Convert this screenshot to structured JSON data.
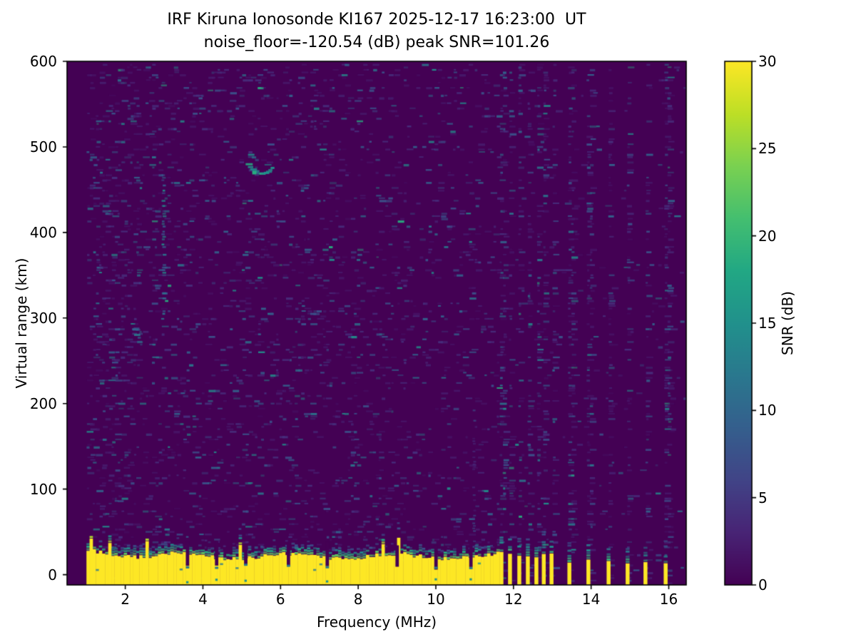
{
  "chart_data": {
    "type": "heatmap",
    "title": "IRF Kiruna Ionosonde KI167 2025-12-17 16:23:00  UT",
    "subtitle": "noise_floor=-120.54 (dB) peak SNR=101.26",
    "xlabel": "Frequency (MHz)",
    "ylabel": "Virtual range (km)",
    "colorbar_label": "SNR (dB)",
    "xlim": [
      0.5,
      16.45
    ],
    "ylim": [
      -12,
      600
    ],
    "xticks": [
      2,
      4,
      6,
      8,
      10,
      12,
      14,
      16
    ],
    "yticks": [
      0,
      100,
      200,
      300,
      400,
      500,
      600
    ],
    "colorbar_ticks": [
      0,
      5,
      10,
      15,
      20,
      25,
      30
    ],
    "clim": [
      0,
      30
    ],
    "colormap": "viridis",
    "colormap_stops": [
      [
        0.0,
        "#440154"
      ],
      [
        0.1,
        "#482475"
      ],
      [
        0.2,
        "#414487"
      ],
      [
        0.3,
        "#355f8d"
      ],
      [
        0.4,
        "#2a788e"
      ],
      [
        0.5,
        "#21918c"
      ],
      [
        0.6,
        "#22a884"
      ],
      [
        0.7,
        "#44bf70"
      ],
      [
        0.8,
        "#7ad151"
      ],
      [
        0.9,
        "#bddf26"
      ],
      [
        1.0,
        "#fde725"
      ]
    ],
    "sweep": {
      "freq_start_mhz": 1.0,
      "freq_end_mhz": 16.4
    },
    "ground_band": {
      "freq_start_mhz": 1.0,
      "freq_end_mhz": 11.58,
      "mean_top_km": 22,
      "notch_freqs_mhz": [
        3.6,
        4.35,
        5.1,
        6.2,
        7.2,
        9.0,
        10.0,
        10.9
      ]
    },
    "rfi_stripes_mhz": [
      11.69,
      11.91,
      12.15,
      12.37,
      12.59,
      12.78,
      12.98,
      13.44,
      13.93,
      14.45,
      14.94,
      15.4,
      15.92
    ],
    "echo_trace": {
      "freq_mhz": [
        5.1,
        5.75
      ],
      "range_km": [
        465,
        482
      ]
    },
    "interference_column": {
      "freq_mhz": 2.95,
      "range_km": [
        300,
        470
      ]
    },
    "noise_patch": {
      "freq_mhz": 2.25,
      "range_km": [
        272,
        290
      ]
    },
    "faint_column": {
      "freq_mhz": 10.95,
      "range_km": [
        40,
        205
      ]
    }
  },
  "colors": {
    "background": "#ffffff",
    "plot_bg": "#440154",
    "band_yellow": "#fde725",
    "axis": "#000000",
    "text": "#000000",
    "speckle_palette": [
      "#481a6c",
      "#472f7d",
      "#3b528b",
      "#32648e",
      "#2a788e",
      "#21918c",
      "#28ae80"
    ],
    "band_transition": [
      "#addc30",
      "#5ec962",
      "#28ae80",
      "#21918c",
      "#2c728e",
      "#3b528b"
    ]
  }
}
